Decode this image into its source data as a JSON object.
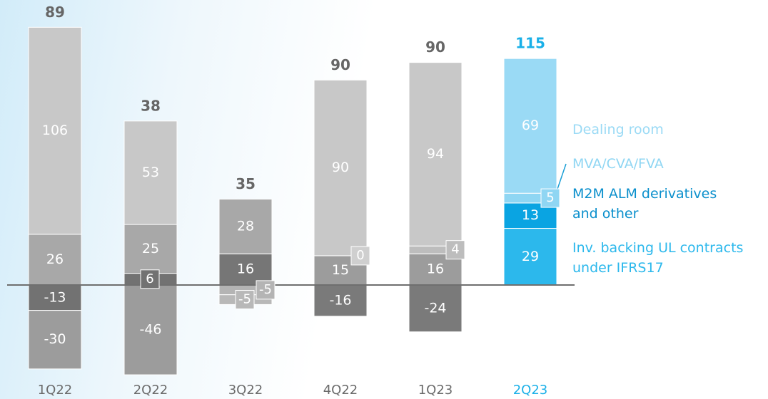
{
  "chart_data": {
    "type": "stacked_bar",
    "categories": [
      "1Q22",
      "2Q22",
      "3Q22",
      "4Q22",
      "1Q23",
      "2Q23"
    ],
    "category_colors": [
      "#6a6a6a",
      "#6a6a6a",
      "#6a6a6a",
      "#6a6a6a",
      "#6a6a6a",
      "#1ab0e8"
    ],
    "totals": [
      89,
      38,
      35,
      90,
      90,
      115
    ],
    "total_colors": [
      "#666666",
      "#666666",
      "#666666",
      "#666666",
      "#666666",
      "#1ab0e8"
    ],
    "series": [
      {
        "name": "Inv. backing UL contracts under IFRS17",
        "values": [
          -30,
          -46,
          -5,
          -16,
          -24,
          29
        ],
        "colors": [
          "#9c9c9c",
          "#9c9c9c",
          "#b8b8b8",
          "#7a7a7a",
          "#7a7a7a",
          "#2cb8ec"
        ]
      },
      {
        "name": "M2M ALM derivatives and other",
        "values": [
          -13,
          6,
          16,
          15,
          16,
          13
        ],
        "colors": [
          "#727272",
          "#727272",
          "#767676",
          "#9c9c9c",
          "#9c9c9c",
          "#0aa4e2"
        ]
      },
      {
        "name": "MVA/CVA/FVA",
        "values": [
          26,
          25,
          -5,
          0,
          4,
          5
        ],
        "colors": [
          "#a8a8a8",
          "#a8a8a8",
          "#b4b4b4",
          "#cfcfcf",
          "#bdbdbd",
          "#8fd6f3"
        ]
      },
      {
        "name": "Dealing room",
        "values": [
          106,
          53,
          28,
          90,
          94,
          69
        ],
        "colors": [
          "#c8c8c8",
          "#c8c8c8",
          "#a8a8a8",
          "#c8c8c8",
          "#c8c8c8",
          "#9adaf5"
        ]
      }
    ]
  }
}
